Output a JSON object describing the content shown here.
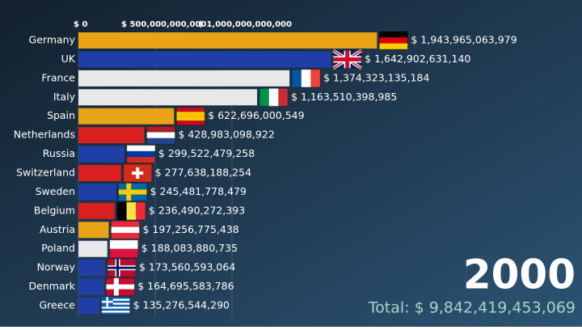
{
  "chart_data": {
    "type": "barh",
    "categories": [
      "Germany",
      "UK",
      "France",
      "Italy",
      "Spain",
      "Netherlands",
      "Russia",
      "Switzerland",
      "Sweden",
      "Belgium",
      "Austria",
      "Poland",
      "Norway",
      "Denmark",
      "Greece"
    ],
    "values": [
      1943965063979,
      1642902631140,
      1374323135184,
      1163510398985,
      622696000549,
      428983098922,
      299522479258,
      277638188254,
      245481778479,
      236490272393,
      197256775438,
      188083880735,
      173560593064,
      164695583786,
      135276544290
    ],
    "value_labels": [
      "$ 1,943,965,063,979",
      "$ 1,642,902,631,140",
      "$ 1,374,323,135,184",
      "$ 1,163,510,398,985",
      "$ 622,696,000,549",
      "$ 428,983,098,922",
      "$ 299,522,479,258",
      "$ 277,638,188,254",
      "$ 245,481,778,479",
      "$ 236,490,272,393",
      "$ 197,256,775,438",
      "$ 188,083,880,735",
      "$ 173,560,593,064",
      "$ 164,695,583,786",
      "$ 135,276,544,290"
    ],
    "colors": [
      "#e8a317",
      "#1f3fa6",
      "#e8e8e8",
      "#e8e8e8",
      "#e8a317",
      "#d91f1f",
      "#1f3fa6",
      "#d91f1f",
      "#1f3fa6",
      "#d91f1f",
      "#e8a317",
      "#e8e8e8",
      "#1f3fa6",
      "#1f3fa6",
      "#1f3fa6"
    ],
    "xlim": [
      0,
      2000000000000
    ],
    "xticks": [
      {
        "value": 0,
        "label": "$ 0"
      },
      {
        "value": 500000000000,
        "label": "$ 500,000,000,000"
      },
      {
        "value": 1000000000000,
        "label": "$ 1,000,000,000,000"
      }
    ],
    "grid": true,
    "year": "2000",
    "total_label": "Total: $ 9,842,419,453,069"
  }
}
